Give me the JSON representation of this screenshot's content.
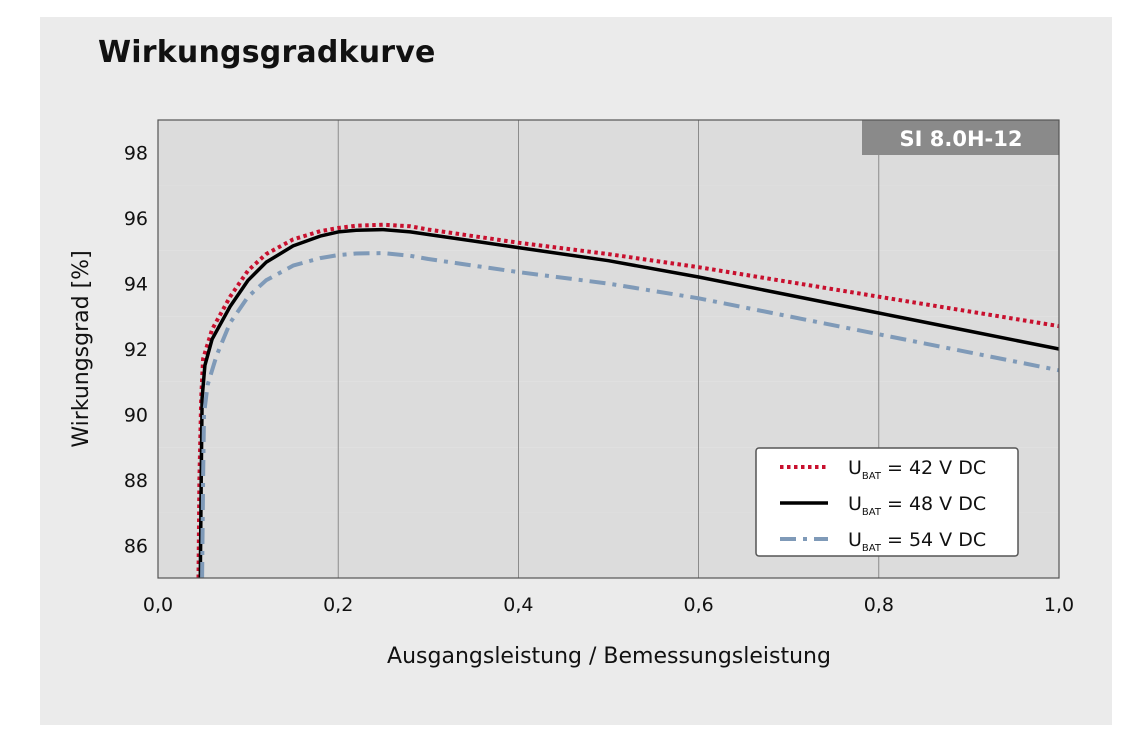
{
  "chart_data": {
    "type": "line",
    "title": "Wirkungsgradkurve",
    "xlabel": "Ausgangsleistung / Bemessungsleistung",
    "ylabel": "Wirkungsgrad [%]",
    "xlim": [
      0.0,
      1.0
    ],
    "ylim": [
      85,
      99
    ],
    "x_ticks": [
      "0,0",
      "0,2",
      "0,4",
      "0,6",
      "0,8",
      "1,0"
    ],
    "y_ticks": [
      "86",
      "88",
      "90",
      "92",
      "94",
      "96",
      "98"
    ],
    "badge": "SI 8.0H-12",
    "grid": "vertical lines, alternating horizontal bands",
    "legend_position": "bottom-right",
    "series": [
      {
        "name": "U_BAT = 42 V DC",
        "legend": {
          "main": "U",
          "sub": "BAT",
          "rest": " = 42 V DC"
        },
        "style": "dotted",
        "color": "#c8102e",
        "points": [
          [
            0.045,
            85
          ],
          [
            0.046,
            88
          ],
          [
            0.048,
            90.5
          ],
          [
            0.05,
            91.7
          ],
          [
            0.06,
            92.6
          ],
          [
            0.08,
            93.6
          ],
          [
            0.1,
            94.4
          ],
          [
            0.12,
            94.9
          ],
          [
            0.15,
            95.35
          ],
          [
            0.18,
            95.6
          ],
          [
            0.2,
            95.7
          ],
          [
            0.22,
            95.77
          ],
          [
            0.25,
            95.8
          ],
          [
            0.28,
            95.75
          ],
          [
            0.3,
            95.65
          ],
          [
            0.35,
            95.45
          ],
          [
            0.4,
            95.25
          ],
          [
            0.5,
            94.9
          ],
          [
            0.6,
            94.5
          ],
          [
            0.7,
            94.05
          ],
          [
            0.8,
            93.6
          ],
          [
            0.9,
            93.15
          ],
          [
            1.0,
            92.7
          ]
        ]
      },
      {
        "name": "U_BAT = 48 V DC",
        "legend": {
          "main": "U",
          "sub": "BAT",
          "rest": " = 48 V DC"
        },
        "style": "solid",
        "color": "#000000",
        "points": [
          [
            0.047,
            85
          ],
          [
            0.048,
            88
          ],
          [
            0.049,
            90.5
          ],
          [
            0.052,
            91.5
          ],
          [
            0.06,
            92.3
          ],
          [
            0.08,
            93.3
          ],
          [
            0.1,
            94.1
          ],
          [
            0.12,
            94.65
          ],
          [
            0.15,
            95.15
          ],
          [
            0.18,
            95.45
          ],
          [
            0.2,
            95.58
          ],
          [
            0.22,
            95.63
          ],
          [
            0.25,
            95.65
          ],
          [
            0.28,
            95.58
          ],
          [
            0.3,
            95.5
          ],
          [
            0.35,
            95.3
          ],
          [
            0.4,
            95.1
          ],
          [
            0.5,
            94.7
          ],
          [
            0.6,
            94.2
          ],
          [
            0.7,
            93.65
          ],
          [
            0.8,
            93.1
          ],
          [
            0.9,
            92.55
          ],
          [
            1.0,
            92.0
          ]
        ]
      },
      {
        "name": "U_BAT = 54 V DC",
        "legend": {
          "main": "U",
          "sub": "BAT",
          "rest": " = 54 V DC"
        },
        "style": "dashdot",
        "color": "#7f9ab8",
        "points": [
          [
            0.049,
            85
          ],
          [
            0.05,
            88
          ],
          [
            0.051,
            90
          ],
          [
            0.055,
            90.9
          ],
          [
            0.065,
            91.8
          ],
          [
            0.08,
            92.8
          ],
          [
            0.1,
            93.6
          ],
          [
            0.12,
            94.1
          ],
          [
            0.15,
            94.55
          ],
          [
            0.18,
            94.78
          ],
          [
            0.2,
            94.87
          ],
          [
            0.22,
            94.92
          ],
          [
            0.25,
            94.93
          ],
          [
            0.28,
            94.85
          ],
          [
            0.3,
            94.75
          ],
          [
            0.35,
            94.55
          ],
          [
            0.4,
            94.35
          ],
          [
            0.5,
            94.0
          ],
          [
            0.6,
            93.55
          ],
          [
            0.7,
            93.0
          ],
          [
            0.8,
            92.45
          ],
          [
            0.9,
            91.9
          ],
          [
            1.0,
            91.35
          ]
        ]
      }
    ]
  }
}
